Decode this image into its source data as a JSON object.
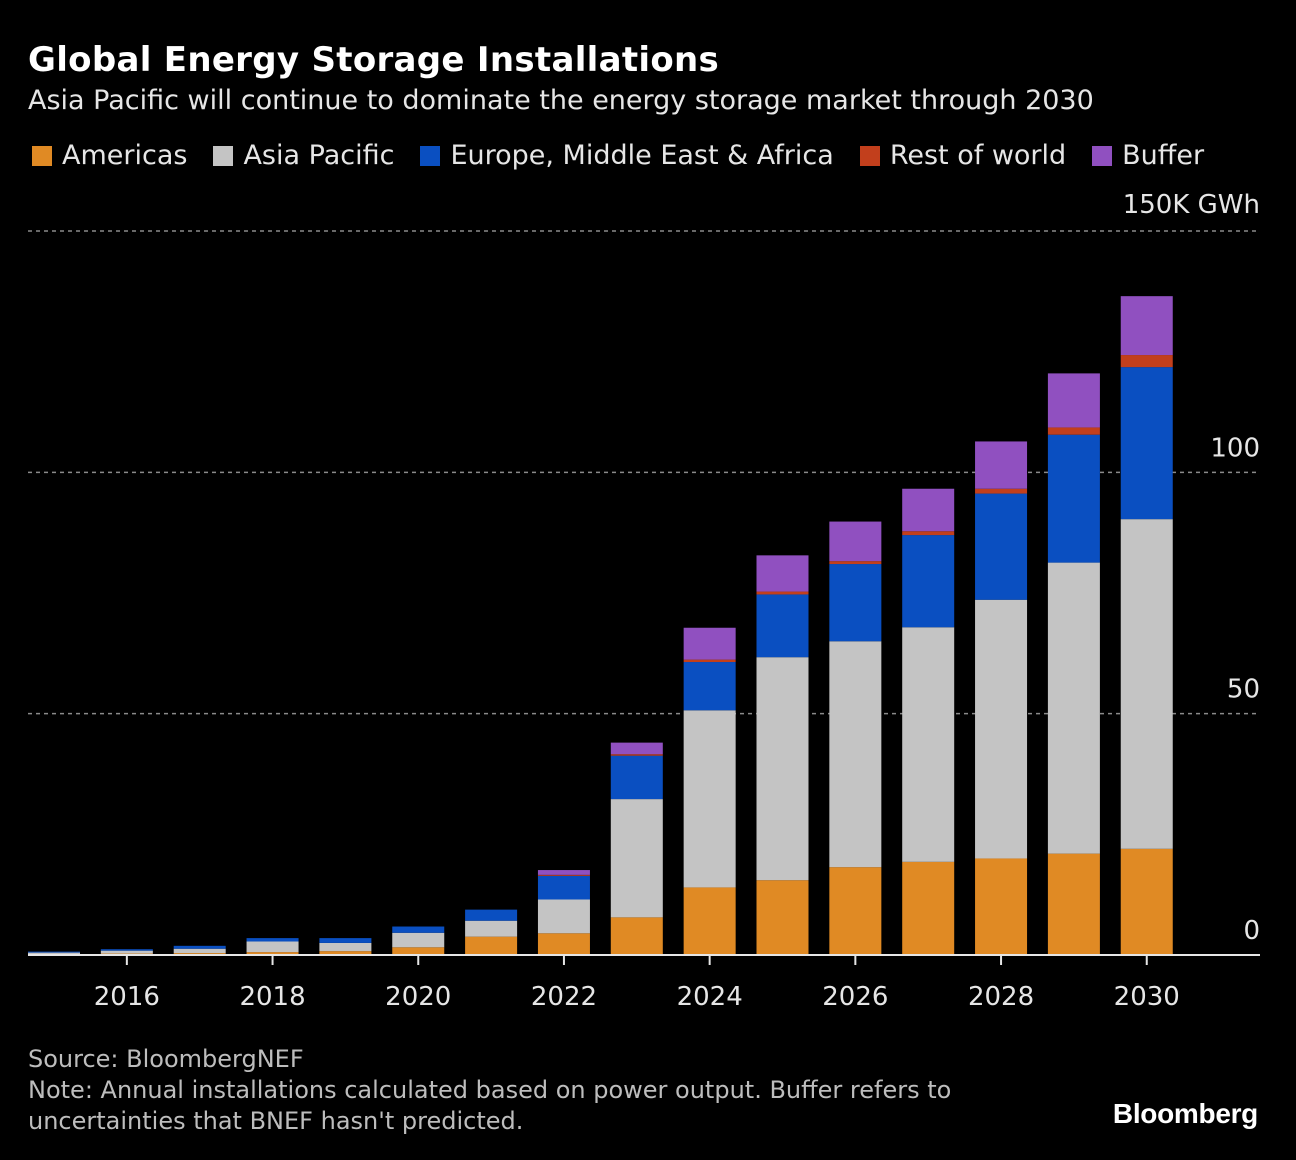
{
  "header": {
    "title": "Global Energy Storage Installations",
    "subtitle": "Asia Pacific will continue to dominate the energy storage market through 2030"
  },
  "colors": {
    "Americas": "#e08a24",
    "Asia Pacific": "#c4c4c4",
    "Europe, Middle East & Africa": "#0a4fc1",
    "Rest of world": "#c23f1c",
    "Buffer": "#9050c0"
  },
  "legend": {
    "items": [
      "Americas",
      "Asia Pacific",
      "Europe, Middle East & Africa",
      "Rest of world",
      "Buffer"
    ]
  },
  "chart_data": {
    "type": "bar",
    "stacked": true,
    "unit_label": "150K GWh",
    "categories": [
      "2015",
      "2016",
      "2017",
      "2018",
      "2019",
      "2020",
      "2021",
      "2022",
      "2023",
      "2024",
      "2025",
      "2026",
      "2027",
      "2028",
      "2029",
      "2030"
    ],
    "xticks": [
      "2016",
      "2018",
      "2020",
      "2022",
      "2024",
      "2026",
      "2028",
      "2030"
    ],
    "yticks": [
      0,
      50,
      100
    ],
    "ylim": [
      0,
      150
    ],
    "series": [
      {
        "name": "Americas",
        "values": [
          0.2,
          0.3,
          0.4,
          0.6,
          0.8,
          1.6,
          3.8,
          4.5,
          7.8,
          14.0,
          15.5,
          18.2,
          19.3,
          20.0,
          21.0,
          22.0
        ]
      },
      {
        "name": "Asia Pacific",
        "values": [
          0.3,
          0.6,
          0.9,
          2.2,
          1.7,
          3.0,
          3.3,
          7.0,
          24.5,
          36.7,
          46.2,
          46.8,
          48.6,
          53.6,
          60.3,
          68.3
        ]
      },
      {
        "name": "Europe, Middle East & Africa",
        "values": [
          0.2,
          0.3,
          0.6,
          0.7,
          1.0,
          1.3,
          2.3,
          4.9,
          9.0,
          10.0,
          13.0,
          16.0,
          19.1,
          22.0,
          26.5,
          31.5
        ]
      },
      {
        "name": "Rest of world",
        "values": [
          0,
          0,
          0,
          0,
          0,
          0,
          0,
          0.2,
          0.3,
          0.5,
          0.6,
          0.6,
          0.8,
          1.0,
          1.5,
          2.5
        ]
      },
      {
        "name": "Buffer",
        "values": [
          0,
          0,
          0,
          0,
          0,
          0,
          0,
          1.0,
          2.4,
          6.6,
          7.5,
          8.2,
          8.8,
          9.8,
          11.2,
          12.2
        ]
      }
    ]
  },
  "footer": {
    "source": "Source: BloombergNEF",
    "note": "Note: Annual installations calculated based on power output. Buffer refers to uncertainties that BNEF hasn't predicted.",
    "brand": "Bloomberg"
  }
}
